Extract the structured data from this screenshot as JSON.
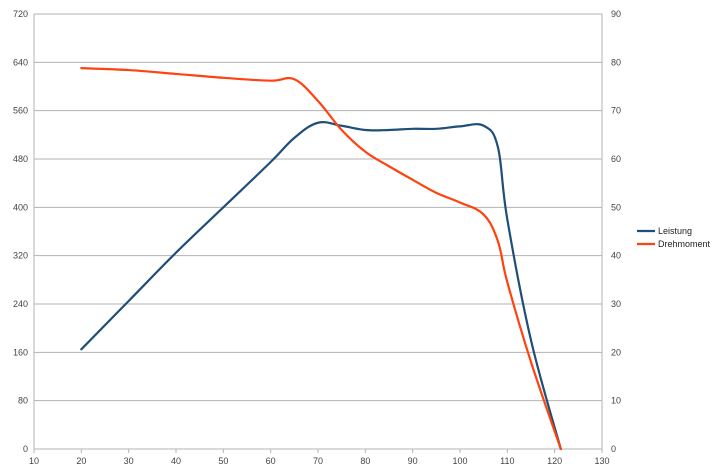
{
  "chart_data": {
    "type": "line",
    "x": [
      20,
      30,
      40,
      50,
      60,
      65,
      70,
      75,
      80,
      85,
      90,
      95,
      100,
      105,
      108,
      110,
      115,
      121.3
    ],
    "xlim": [
      10,
      130
    ],
    "x_ticks": [
      10,
      20,
      30,
      40,
      50,
      60,
      70,
      80,
      90,
      100,
      110,
      120,
      130
    ],
    "ylim_left": [
      0,
      720
    ],
    "y_ticks_left": [
      0,
      80,
      160,
      240,
      320,
      400,
      480,
      560,
      640,
      720
    ],
    "ylim_right": [
      0,
      90
    ],
    "y_ticks_right": [
      0,
      10,
      20,
      30,
      40,
      50,
      60,
      70,
      80,
      90
    ],
    "grid": "horizontal",
    "legend_position": "right",
    "series": [
      {
        "name": "Leistung",
        "axis": "left",
        "color": "#1f4e79",
        "values": [
          165,
          245,
          325,
          400,
          475,
          515,
          540,
          535,
          528,
          528,
          530,
          530,
          534,
          535,
          500,
          380,
          180,
          0
        ]
      },
      {
        "name": "Drehmoment",
        "axis": "right",
        "color": "#ff420e",
        "values": [
          78.8,
          78.4,
          77.6,
          76.8,
          76.2,
          76.5,
          72.0,
          66.0,
          61.5,
          58.5,
          55.7,
          53.0,
          51.0,
          48.5,
          43.0,
          34.5,
          18.0,
          0
        ]
      }
    ]
  }
}
